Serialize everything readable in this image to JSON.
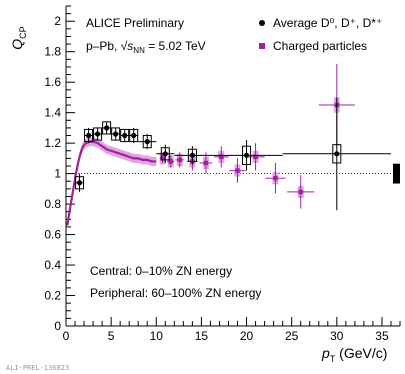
{
  "chart_data": {
    "type": "scatter",
    "xlabel": {
      "main": "p",
      "sub": "T",
      "units": " (GeV/c)"
    },
    "ylabel": {
      "main": "Q",
      "sub": "CP"
    },
    "xlim": [
      0,
      37
    ],
    "ylim": [
      0,
      2.1
    ],
    "x_ticks": [
      0,
      5,
      10,
      15,
      20,
      25,
      30,
      35
    ],
    "y_ticks": [
      0,
      0.2,
      0.4,
      0.6,
      0.8,
      1,
      1.2,
      1.4,
      1.6,
      1.8,
      2
    ],
    "reference_line": 1,
    "annotations": {
      "experiment": "ALICE Preliminary",
      "system_prefix": "p–Pb, ",
      "energy_sub": "NN",
      "energy_value": " = 5.02 TeV",
      "central": "Central: 0–10% ZN energy",
      "peripheral": "Peripheral: 60–100% ZN energy",
      "prelim_id": "ALI-PREL-136823"
    },
    "legend": {
      "position": "top-right"
    },
    "series": [
      {
        "name": "Average D⁰, D⁺, D*⁺",
        "marker": "circle",
        "color": "#000000",
        "points": [
          {
            "x": 1.5,
            "y": 0.94,
            "xerr": 0.5,
            "yerr": 0.06,
            "syst": 0.04
          },
          {
            "x": 2.5,
            "y": 1.25,
            "xerr": 0.5,
            "yerr": 0.05,
            "syst": 0.04
          },
          {
            "x": 3.5,
            "y": 1.26,
            "xerr": 0.5,
            "yerr": 0.04,
            "syst": 0.04
          },
          {
            "x": 4.5,
            "y": 1.3,
            "xerr": 0.5,
            "yerr": 0.04,
            "syst": 0.04
          },
          {
            "x": 5.5,
            "y": 1.26,
            "xerr": 0.5,
            "yerr": 0.04,
            "syst": 0.04
          },
          {
            "x": 6.5,
            "y": 1.25,
            "xerr": 0.5,
            "yerr": 0.04,
            "syst": 0.04
          },
          {
            "x": 7.5,
            "y": 1.25,
            "xerr": 0.5,
            "yerr": 0.05,
            "syst": 0.04
          },
          {
            "x": 9,
            "y": 1.21,
            "xerr": 1,
            "yerr": 0.05,
            "syst": 0.04
          },
          {
            "x": 11,
            "y": 1.13,
            "xerr": 1,
            "yerr": 0.06,
            "syst": 0.04
          },
          {
            "x": 14,
            "y": 1.12,
            "xerr": 2,
            "yerr": 0.06,
            "syst": 0.04
          },
          {
            "x": 20,
            "y": 1.12,
            "xerr": 4,
            "yerr": 0.1,
            "syst": 0.06
          },
          {
            "x": 30,
            "y": 1.13,
            "xerr": 6,
            "yerr": 0.37,
            "syst": 0.06
          }
        ]
      },
      {
        "name": "Charged particles",
        "marker": "square",
        "color": "#a020a0",
        "syst_color": "#e0a6e0",
        "curve": [
          [
            0.15,
            0.66
          ],
          [
            0.3,
            0.72
          ],
          [
            0.5,
            0.79
          ],
          [
            0.7,
            0.86
          ],
          [
            0.9,
            0.93
          ],
          [
            1.1,
            1.0
          ],
          [
            1.3,
            1.06
          ],
          [
            1.5,
            1.11
          ],
          [
            1.7,
            1.15
          ],
          [
            1.9,
            1.18
          ],
          [
            2.2,
            1.2
          ],
          [
            2.6,
            1.21
          ],
          [
            3.0,
            1.21
          ],
          [
            3.5,
            1.2
          ],
          [
            4.0,
            1.18
          ],
          [
            4.5,
            1.16
          ],
          [
            5.0,
            1.15
          ],
          [
            5.5,
            1.14
          ],
          [
            6.0,
            1.13
          ],
          [
            6.5,
            1.12
          ],
          [
            7.0,
            1.11
          ],
          [
            7.5,
            1.1
          ],
          [
            8.0,
            1.1
          ],
          [
            8.5,
            1.09
          ],
          [
            9.0,
            1.09
          ],
          [
            9.5,
            1.08
          ],
          [
            10.0,
            1.08
          ]
        ],
        "points": [
          {
            "x": 10.7,
            "y": 1.1,
            "xerr": 0.3,
            "yerr": 0.03,
            "syst": 0.04
          },
          {
            "x": 11.6,
            "y": 1.08,
            "xerr": 0.4,
            "yerr": 0.04,
            "syst": 0.04
          },
          {
            "x": 12.6,
            "y": 1.09,
            "xerr": 0.5,
            "yerr": 0.05,
            "syst": 0.04
          },
          {
            "x": 14.0,
            "y": 1.08,
            "xerr": 0.6,
            "yerr": 0.06,
            "syst": 0.04
          },
          {
            "x": 15.5,
            "y": 1.07,
            "xerr": 0.7,
            "yerr": 0.07,
            "syst": 0.04
          },
          {
            "x": 17.2,
            "y": 1.11,
            "xerr": 0.8,
            "yerr": 0.07,
            "syst": 0.04
          },
          {
            "x": 19.0,
            "y": 1.02,
            "xerr": 0.9,
            "yerr": 0.08,
            "syst": 0.04
          },
          {
            "x": 21.0,
            "y": 1.11,
            "xerr": 1.0,
            "yerr": 0.09,
            "syst": 0.04
          },
          {
            "x": 23.2,
            "y": 0.97,
            "xerr": 1.1,
            "yerr": 0.1,
            "syst": 0.04
          },
          {
            "x": 26.0,
            "y": 0.88,
            "xerr": 1.5,
            "yerr": 0.11,
            "syst": 0.04
          },
          {
            "x": 30.0,
            "y": 1.45,
            "xerr": 2.0,
            "yerr": 0.27,
            "syst": 0.05
          }
        ]
      }
    ],
    "global_uncertainty_box": {
      "y": 1,
      "height": 0.13
    }
  }
}
